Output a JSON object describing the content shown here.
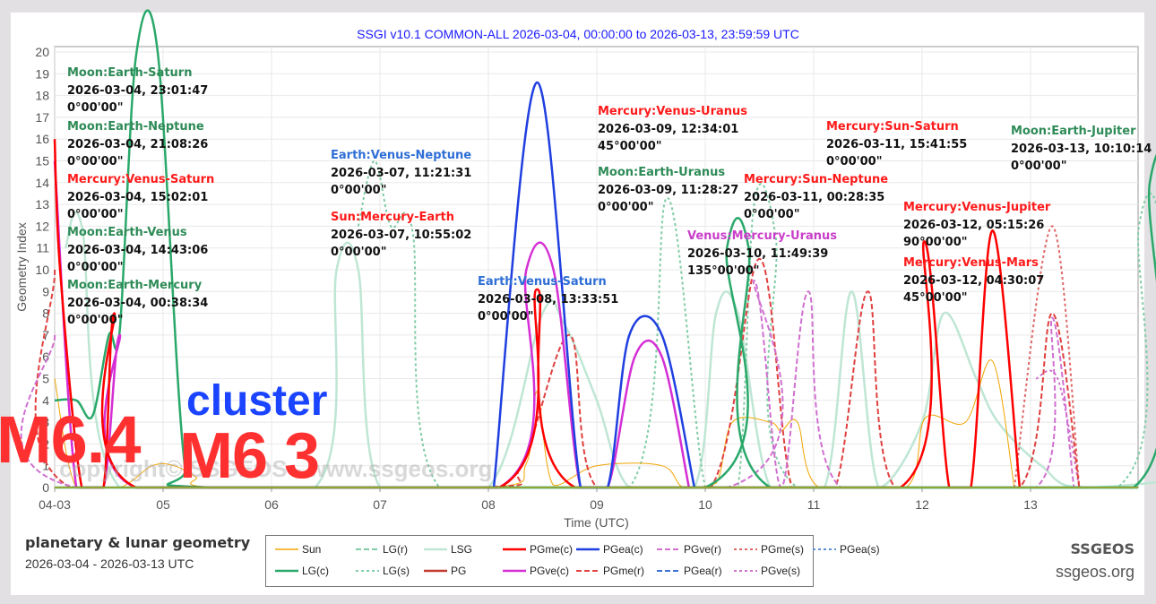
{
  "header": {
    "title": "SSGI v10.1 COMMON-ALL 2026-03-04, 00:00:00 to 2026-03-13, 23:59:59 UTC"
  },
  "footer": {
    "title": "planetary & lunar geometry",
    "range": "2026-03-04 - 2026-03-13 UTC",
    "brand": "SSGEOS",
    "url": "ssgeos.org"
  },
  "watermarks": {
    "left": "M6.4",
    "cluster": "cluster",
    "right": "M6 3",
    "copyright": "copyright© SSGEOS - www.ssgeos.org"
  },
  "annotations": [
    {
      "title": "Moon:Earth-Saturn",
      "date": "2026-03-04, 23:01:47",
      "angle": "0°00'00\"",
      "color": "#2e8b57"
    },
    {
      "title": "Moon:Earth-Neptune",
      "date": "2026-03-04, 21:08:26",
      "angle": "0°00'00\"",
      "color": "#2e8b57"
    },
    {
      "title": "Mercury:Venus-Saturn",
      "date": "2026-03-04, 15:02:01",
      "angle": "0°00'00\"",
      "color": "#ff1a1a"
    },
    {
      "title": "Moon:Earth-Venus",
      "date": "2026-03-04, 14:43:06",
      "angle": "0°00'00\"",
      "color": "#2e8b57"
    },
    {
      "title": "Moon:Earth-Mercury",
      "date": "2026-03-04, 00:38:34",
      "angle": "0°00'00\"",
      "color": "#2e8b57"
    },
    {
      "title": "Earth:Venus-Neptune",
      "date": "2026-03-07, 11:21:31",
      "angle": "0°00'00\"",
      "color": "#2f6fd6"
    },
    {
      "title": "Sun:Mercury-Earth",
      "date": "2026-03-07, 10:55:02",
      "angle": "0°00'00\"",
      "color": "#ff1a1a"
    },
    {
      "title": "Earth:Venus-Saturn",
      "date": "2026-03-08, 13:33:51",
      "angle": "0°00'00\"",
      "color": "#2f6fd6"
    },
    {
      "title": "Mercury:Venus-Uranus",
      "date": "2026-03-09, 12:34:01",
      "angle": "45°00'00\"",
      "color": "#ff1a1a"
    },
    {
      "title": "Moon:Earth-Uranus",
      "date": "2026-03-09, 11:28:27",
      "angle": "0°00'00\"",
      "color": "#2e8b57"
    },
    {
      "title": "Venus:Mercury-Uranus",
      "date": "2026-03-10, 11:49:39",
      "angle": "135°00'00\"",
      "color": "#c93fc9"
    },
    {
      "title": "Mercury:Sun-Neptune",
      "date": "2026-03-11, 00:28:35",
      "angle": "0°00'00\"",
      "color": "#ff1a1a"
    },
    {
      "title": "Mercury:Sun-Saturn",
      "date": "2026-03-11, 15:41:55",
      "angle": "0°00'00\"",
      "color": "#ff1a1a"
    },
    {
      "title": "Mercury:Venus-Jupiter",
      "date": "2026-03-12, 05:15:26",
      "angle": "90°00'00\"",
      "color": "#ff1a1a"
    },
    {
      "title": "Mercury:Venus-Mars",
      "date": "2026-03-12, 04:30:07",
      "angle": "45°00'00\"",
      "color": "#ff1a1a"
    },
    {
      "title": "Moon:Earth-Jupiter",
      "date": "2026-03-13, 10:10:14",
      "angle": "0°00'00\"",
      "color": "#2e8b57"
    }
  ],
  "legend": [
    {
      "label": "Sun",
      "color": "#f0a500",
      "dash": "",
      "width": 1
    },
    {
      "label": "LG(r)",
      "color": "#7fcca5",
      "dash": "6,3",
      "width": 2
    },
    {
      "label": "LSG",
      "color": "#bfe6d4",
      "dash": "",
      "width": 2.5
    },
    {
      "label": "PGme(c)",
      "color": "#ff0000",
      "dash": "",
      "width": 2.5
    },
    {
      "label": "PGea(c)",
      "color": "#1f3fe0",
      "dash": "",
      "width": 2.5
    },
    {
      "label": "PGve(r)",
      "color": "#d070d0",
      "dash": "6,3",
      "width": 2
    },
    {
      "label": "PGme(s)",
      "color": "#e06666",
      "dash": "3,3",
      "width": 2
    },
    {
      "label": "PGea(s)",
      "color": "#5b8fd6",
      "dash": "3,3",
      "width": 2
    },
    {
      "label": "LG(c)",
      "color": "#2aa86a",
      "dash": "",
      "width": 2.5
    },
    {
      "label": "LG(s)",
      "color": "#7fcca5",
      "dash": "3,3",
      "width": 2
    },
    {
      "label": "PG",
      "color": "#c0392b",
      "dash": "",
      "width": 2.5
    },
    {
      "label": "PGve(c)",
      "color": "#d42ed4",
      "dash": "",
      "width": 2.5
    },
    {
      "label": "PGme(r)",
      "color": "#e04040",
      "dash": "6,3",
      "width": 2
    },
    {
      "label": "PGea(r)",
      "color": "#3a6fd0",
      "dash": "6,3",
      "width": 2
    },
    {
      "label": "PGve(s)",
      "color": "#d070d0",
      "dash": "3,3",
      "width": 2
    }
  ],
  "chart_data": {
    "type": "line",
    "title": "SSGI v10.1 COMMON-ALL 2026-03-04, 00:00:00 to 2026-03-13, 23:59:59 UTC",
    "xlabel": "Time (UTC)",
    "ylabel": "Geometry Index",
    "ylim": [
      0,
      20
    ],
    "yticks": [
      "0",
      "1",
      "2",
      "3",
      "4",
      "5",
      "6",
      "7",
      "8",
      "9",
      "10",
      "11",
      "12",
      "13",
      "14",
      "15",
      "16",
      "17",
      "18",
      "19",
      "20"
    ],
    "xticks": [
      "04-03",
      "05",
      "06",
      "07",
      "08",
      "09",
      "10",
      "11",
      "12",
      "13"
    ],
    "grid": true,
    "legend_position": "bottom",
    "x_days": [
      3,
      4,
      5,
      6,
      7,
      8,
      9,
      10,
      11,
      12,
      13,
      14
    ],
    "series": [
      {
        "name": "LG(c)",
        "points": [
          [
            3.0,
            4
          ],
          [
            3.2,
            4
          ],
          [
            3.35,
            3.3
          ],
          [
            3.5,
            7
          ],
          [
            3.6,
            7.2
          ],
          [
            3.75,
            19.8
          ],
          [
            3.95,
            20
          ],
          [
            4.2,
            1
          ],
          [
            4.45,
            0
          ],
          [
            9.0,
            0
          ],
          [
            9.2,
            11
          ],
          [
            9.4,
            11
          ],
          [
            9.6,
            0
          ],
          [
            12.95,
            0
          ],
          [
            13.1,
            14
          ],
          [
            13.4,
            14
          ],
          [
            13.6,
            0
          ],
          [
            13.9,
            0
          ]
        ]
      },
      {
        "name": "PGme(c)",
        "points": [
          [
            3.0,
            16
          ],
          [
            3.05,
            10
          ],
          [
            3.25,
            0
          ],
          [
            3.45,
            0
          ],
          [
            3.55,
            8
          ],
          [
            3.75,
            0
          ],
          [
            7.1,
            0
          ],
          [
            7.45,
            9.1
          ],
          [
            7.8,
            0
          ],
          [
            10.8,
            0
          ],
          [
            11.02,
            11.3
          ],
          [
            11.25,
            0
          ],
          [
            11.45,
            0
          ],
          [
            11.65,
            11.8
          ],
          [
            11.9,
            0
          ]
        ]
      },
      {
        "name": "PGea(c)",
        "points": [
          [
            7.05,
            0
          ],
          [
            7.45,
            18.6
          ],
          [
            7.85,
            0
          ],
          [
            8.1,
            0
          ],
          [
            8.3,
            7
          ],
          [
            8.6,
            7
          ],
          [
            8.9,
            0
          ]
        ]
      },
      {
        "name": "PGve(c)",
        "points": [
          [
            3.0,
            15
          ],
          [
            3.2,
            0
          ],
          [
            3.45,
            0
          ],
          [
            3.6,
            7
          ],
          [
            3.75,
            0
          ],
          [
            7.1,
            0
          ],
          [
            7.35,
            10
          ],
          [
            7.6,
            10
          ],
          [
            7.85,
            0
          ],
          [
            8.1,
            0
          ],
          [
            8.35,
            6
          ],
          [
            8.6,
            6
          ],
          [
            8.85,
            0
          ]
        ]
      },
      {
        "name": "LG(s)",
        "points": [
          [
            5.8,
            12
          ],
          [
            5.95,
            15
          ],
          [
            6.1,
            12
          ],
          [
            6.3,
            11.8
          ],
          [
            6.55,
            0
          ],
          [
            8.3,
            0
          ],
          [
            8.65,
            13.3
          ],
          [
            9.0,
            0
          ],
          [
            9.3,
            0
          ],
          [
            9.45,
            13
          ],
          [
            9.65,
            11.5
          ],
          [
            9.85,
            0
          ],
          [
            12.8,
            0
          ],
          [
            13.0,
            12
          ],
          [
            13.2,
            12
          ],
          [
            13.35,
            0
          ],
          [
            13.55,
            0
          ],
          [
            13.9,
            12
          ]
        ]
      },
      {
        "name": "LSG",
        "points": [
          [
            3.1,
            11
          ],
          [
            3.25,
            12
          ],
          [
            3.6,
            0
          ],
          [
            5.4,
            0
          ],
          [
            5.6,
            10
          ],
          [
            5.8,
            10
          ],
          [
            6.0,
            0
          ],
          [
            7.0,
            0
          ],
          [
            7.5,
            8
          ],
          [
            7.7,
            7.5
          ],
          [
            8.0,
            4
          ],
          [
            8.3,
            0
          ],
          [
            8.9,
            0
          ],
          [
            9.1,
            8
          ],
          [
            9.3,
            8
          ],
          [
            9.6,
            0
          ],
          [
            10.1,
            0
          ],
          [
            10.35,
            9
          ],
          [
            10.6,
            0
          ],
          [
            11.0,
            3
          ],
          [
            11.2,
            8
          ],
          [
            11.5,
            5
          ],
          [
            11.7,
            3
          ],
          [
            12.1,
            1
          ],
          [
            12.5,
            0
          ],
          [
            13.8,
            1
          ],
          [
            13.95,
            4
          ]
        ]
      },
      {
        "name": "Sun",
        "points": [
          [
            3.0,
            5
          ],
          [
            3.2,
            0
          ],
          [
            3.6,
            0
          ],
          [
            3.9,
            1
          ],
          [
            4.1,
            1
          ],
          [
            4.3,
            0.5
          ],
          [
            4.5,
            0
          ],
          [
            7.0,
            0
          ],
          [
            7.35,
            1.1
          ],
          [
            7.45,
            4.4
          ],
          [
            7.6,
            0.1
          ],
          [
            8.0,
            1
          ],
          [
            8.6,
            1
          ],
          [
            8.8,
            0
          ],
          [
            9.1,
            0.2
          ],
          [
            9.25,
            3
          ],
          [
            9.6,
            3
          ],
          [
            9.7,
            2.6
          ],
          [
            9.85,
            3
          ],
          [
            10.05,
            0
          ],
          [
            10.85,
            0
          ],
          [
            11.03,
            3.2
          ],
          [
            11.4,
            3
          ],
          [
            11.65,
            5.8
          ],
          [
            11.85,
            0
          ]
        ]
      },
      {
        "name": "PGme(r)",
        "points": [
          [
            3.0,
            10
          ],
          [
            3.15,
            0
          ],
          [
            6.9,
            0
          ],
          [
            7.3,
            1
          ],
          [
            7.75,
            7
          ],
          [
            8.0,
            0
          ],
          [
            9.05,
            0
          ],
          [
            9.5,
            10.5
          ],
          [
            9.8,
            0
          ],
          [
            10.2,
            0
          ],
          [
            10.5,
            9
          ],
          [
            10.75,
            0
          ],
          [
            11.9,
            0
          ],
          [
            12.2,
            8
          ],
          [
            12.45,
            0
          ]
        ]
      },
      {
        "name": "PGme(s)",
        "points": [
          [
            11.85,
            0
          ],
          [
            12.2,
            12
          ],
          [
            12.45,
            0
          ]
        ]
      },
      {
        "name": "PGve(r)",
        "points": [
          [
            3.0,
            7
          ],
          [
            3.2,
            0
          ],
          [
            9.2,
            0
          ],
          [
            9.45,
            9.5
          ],
          [
            9.7,
            0
          ],
          [
            9.95,
            9
          ],
          [
            10.25,
            0
          ],
          [
            12.05,
            0
          ],
          [
            12.2,
            7.8
          ],
          [
            12.4,
            0
          ]
        ]
      },
      {
        "name": "PGve(s)",
        "points": [
          [
            12.05,
            5
          ],
          [
            12.25,
            5
          ],
          [
            12.45,
            0
          ]
        ]
      }
    ],
    "annotations": [
      "Moon:Earth-Saturn 2026-03-04, 23:01:47 0°00'00\"",
      "Moon:Earth-Neptune 2026-03-04, 21:08:26 0°00'00\"",
      "Mercury:Venus-Saturn 2026-03-04, 15:02:01 0°00'00\"",
      "Moon:Earth-Venus 2026-03-04, 14:43:06 0°00'00\"",
      "Moon:Earth-Mercury 2026-03-04, 00:38:34 0°00'00\"",
      "Earth:Venus-Neptune 2026-03-07, 11:21:31 0°00'00\"",
      "Sun:Mercury-Earth 2026-03-07, 10:55:02 0°00'00\"",
      "Earth:Venus-Saturn 2026-03-08, 13:33:51 0°00'00\"",
      "Mercury:Venus-Uranus 2026-03-09, 12:34:01 45°00'00\"",
      "Moon:Earth-Uranus 2026-03-09, 11:28:27 0°00'00\"",
      "Venus:Mercury-Uranus 2026-03-10, 11:49:39 135°00'00\"",
      "Mercury:Sun-Neptune 2026-03-11, 00:28:35 0°00'00\"",
      "Mercury:Sun-Saturn 2026-03-11, 15:41:55 0°00'00\"",
      "Mercury:Venus-Jupiter 2026-03-12, 05:15:26 90°00'00\"",
      "Mercury:Venus-Mars 2026-03-12, 04:30:07 45°00'00\"",
      "Moon:Earth-Jupiter 2026-03-13, 10:10:14 0°00'00\""
    ]
  }
}
